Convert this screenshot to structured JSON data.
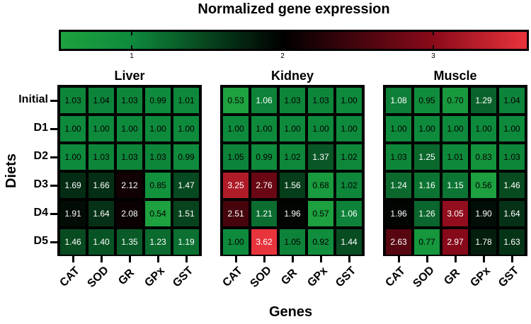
{
  "chart_data": {
    "type": "heatmap",
    "title": "Normalized gene expression",
    "xlabel": "Genes",
    "ylabel": "Diets",
    "rows": [
      "Initial",
      "D1",
      "D2",
      "D3",
      "D4",
      "D5"
    ],
    "genes": [
      "CAT",
      "SOD",
      "GR",
      "GPx",
      "GST"
    ],
    "colorbar": {
      "ticks": [
        "1",
        "2",
        "3"
      ],
      "tick_values": [
        1,
        2,
        3
      ],
      "range": [
        0.53,
        3.62
      ],
      "colors": {
        "low": "#1ea23f",
        "one": "#0e8a3c",
        "two": "#000000",
        "three": "#8a0a1a",
        "high": "#e8343c"
      }
    },
    "panels": [
      {
        "name": "Liver",
        "values": [
          [
            1.03,
            1.04,
            1.03,
            0.99,
            1.01
          ],
          [
            1.0,
            1.0,
            1.0,
            1.0,
            1.0
          ],
          [
            1.0,
            1.03,
            1.03,
            1.03,
            0.99
          ],
          [
            1.69,
            1.66,
            2.12,
            0.85,
            1.47
          ],
          [
            1.91,
            1.64,
            2.08,
            0.54,
            1.51
          ],
          [
            1.46,
            1.4,
            1.35,
            1.23,
            1.19
          ]
        ]
      },
      {
        "name": "Kidney",
        "values": [
          [
            0.53,
            1.06,
            1.03,
            1.03,
            1.0
          ],
          [
            1.0,
            1.0,
            1.0,
            1.0,
            1.0
          ],
          [
            1.05,
            0.99,
            1.02,
            1.37,
            1.02
          ],
          [
            3.25,
            2.76,
            1.56,
            0.68,
            1.02
          ],
          [
            2.51,
            1.21,
            1.96,
            0.57,
            1.06
          ],
          [
            1.0,
            3.62,
            1.05,
            0.92,
            1.44
          ]
        ]
      },
      {
        "name": "Muscle",
        "values": [
          [
            1.08,
            0.95,
            0.7,
            1.29,
            1.04
          ],
          [
            1.0,
            1.0,
            1.0,
            1.0,
            1.0
          ],
          [
            1.03,
            1.25,
            1.01,
            0.83,
            1.03
          ],
          [
            1.24,
            1.16,
            1.15,
            0.56,
            1.46
          ],
          [
            1.96,
            1.26,
            3.05,
            1.9,
            1.64
          ],
          [
            2.63,
            0.77,
            2.97,
            1.78,
            1.63
          ]
        ]
      }
    ]
  }
}
